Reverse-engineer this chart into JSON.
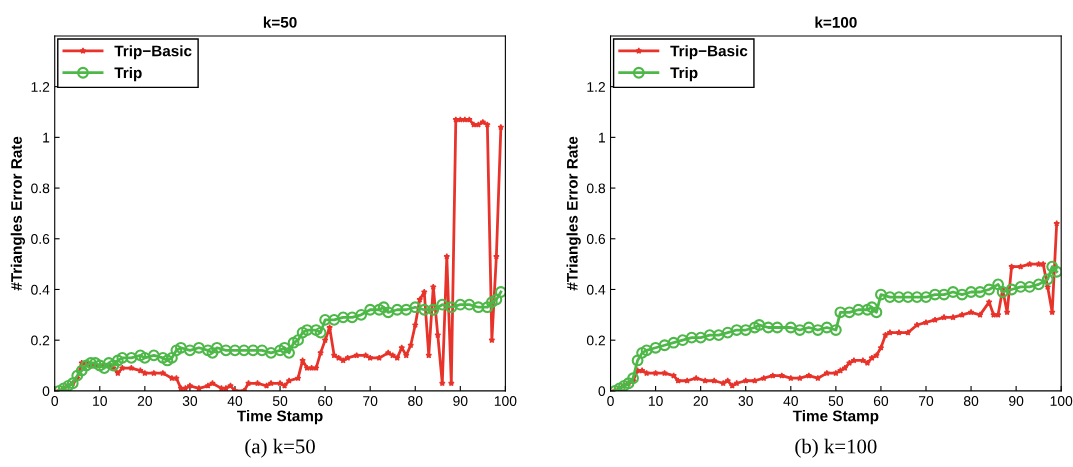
{
  "chart_data": [
    {
      "type": "line",
      "title": "k=50",
      "xlabel": "Time Stamp",
      "ylabel": "#Triangles Error Rate",
      "annotations": [
        "(a) k=50"
      ],
      "xlim": [
        0,
        100
      ],
      "xticks": [
        0,
        10,
        20,
        30,
        40,
        50,
        60,
        70,
        80,
        90,
        100
      ],
      "ylim": [
        0,
        1.4
      ],
      "yticks": [
        0,
        0.2,
        0.4,
        0.6,
        0.8,
        1,
        1.2
      ],
      "grid": false,
      "legend": "top left",
      "line_style": "solid",
      "series": [
        {
          "name": "Trip−Basic",
          "color": "#e8332a",
          "marker": "star",
          "x": [
            1,
            2,
            3,
            4,
            5,
            6,
            7,
            8,
            10,
            12,
            13,
            14,
            15,
            17,
            19,
            20,
            22,
            24,
            26,
            27,
            28,
            29,
            30,
            32,
            34,
            35,
            37,
            38,
            39,
            40,
            42,
            43,
            45,
            47,
            48,
            50,
            51,
            52,
            54,
            55,
            56,
            57,
            58,
            59,
            60,
            61,
            62,
            63,
            64,
            65,
            67,
            69,
            70,
            72,
            74,
            75,
            76,
            77,
            78,
            79,
            80,
            81,
            82,
            83,
            84,
            85,
            86,
            87,
            88,
            89,
            90,
            91,
            92,
            93,
            94,
            95,
            96,
            97,
            98,
            99
          ],
          "values": [
            0,
            0.01,
            0.02,
            0.03,
            0.05,
            0.11,
            0.11,
            0.1,
            0.1,
            0.1,
            0.09,
            0.07,
            0.09,
            0.09,
            0.08,
            0.07,
            0.07,
            0.07,
            0.05,
            0.05,
            0.01,
            0.01,
            0.02,
            0.01,
            0.02,
            0.03,
            0.01,
            0.01,
            0.02,
            0,
            0,
            0.03,
            0.03,
            0.02,
            0.03,
            0.03,
            0.02,
            0.04,
            0.05,
            0.12,
            0.09,
            0.09,
            0.09,
            0.15,
            0.2,
            0.25,
            0.14,
            0.13,
            0.12,
            0.13,
            0.14,
            0.14,
            0.13,
            0.13,
            0.15,
            0.14,
            0.13,
            0.17,
            0.14,
            0.18,
            0.26,
            0.36,
            0.39,
            0.14,
            0.41,
            0.22,
            0.03,
            0.53,
            0.03,
            1.07,
            1.07,
            1.07,
            1.07,
            1.05,
            1.05,
            1.06,
            1.05,
            0.2,
            0.53,
            1.04
          ]
        },
        {
          "name": "Trip",
          "color": "#4db848",
          "marker": "circle",
          "x": [
            1,
            2,
            3,
            4,
            5,
            6,
            7,
            8,
            9,
            10,
            11,
            12,
            13,
            14,
            15,
            17,
            19,
            20,
            22,
            24,
            25,
            26,
            27,
            28,
            30,
            32,
            34,
            35,
            36,
            38,
            40,
            42,
            44,
            46,
            48,
            50,
            51,
            52,
            53,
            54,
            55,
            56,
            58,
            59,
            60,
            62,
            64,
            66,
            68,
            70,
            72,
            73,
            74,
            76,
            78,
            80,
            82,
            84,
            86,
            88,
            90,
            92,
            94,
            96,
            97,
            98,
            99
          ],
          "values": [
            0,
            0.01,
            0.02,
            0.03,
            0.06,
            0.08,
            0.1,
            0.11,
            0.11,
            0.1,
            0.09,
            0.11,
            0.1,
            0.12,
            0.13,
            0.13,
            0.14,
            0.13,
            0.14,
            0.13,
            0.12,
            0.13,
            0.16,
            0.17,
            0.16,
            0.17,
            0.16,
            0.15,
            0.17,
            0.16,
            0.16,
            0.16,
            0.16,
            0.16,
            0.15,
            0.16,
            0.17,
            0.15,
            0.19,
            0.2,
            0.23,
            0.24,
            0.24,
            0.23,
            0.28,
            0.28,
            0.29,
            0.29,
            0.3,
            0.32,
            0.32,
            0.33,
            0.31,
            0.32,
            0.32,
            0.33,
            0.32,
            0.32,
            0.34,
            0.33,
            0.34,
            0.34,
            0.33,
            0.33,
            0.35,
            0.36,
            0.39
          ]
        }
      ]
    },
    {
      "type": "line",
      "title": "k=100",
      "xlabel": "Time Stamp",
      "ylabel": "#Triangles Error Rate",
      "annotations": [
        "(b) k=100"
      ],
      "xlim": [
        0,
        100
      ],
      "xticks": [
        0,
        10,
        20,
        30,
        40,
        50,
        60,
        70,
        80,
        90,
        100
      ],
      "ylim": [
        0,
        1.4
      ],
      "yticks": [
        0,
        0.2,
        0.4,
        0.6,
        0.8,
        1,
        1.2
      ],
      "grid": false,
      "legend": "top left",
      "line_style": "solid",
      "series": [
        {
          "name": "Trip−Basic",
          "color": "#e8332a",
          "marker": "star",
          "x": [
            1,
            2,
            3,
            4,
            5,
            6,
            7,
            8,
            10,
            12,
            14,
            15,
            17,
            19,
            21,
            23,
            25,
            26,
            27,
            28,
            30,
            32,
            34,
            36,
            38,
            40,
            42,
            44,
            46,
            48,
            50,
            51,
            52,
            53,
            54,
            56,
            57,
            58,
            59,
            60,
            61,
            62,
            64,
            66,
            68,
            70,
            72,
            74,
            76,
            78,
            80,
            82,
            84,
            85,
            86,
            87,
            88,
            89,
            91,
            93,
            95,
            96,
            97,
            98,
            99
          ],
          "values": [
            0,
            0.01,
            0.02,
            0.03,
            0.04,
            0.08,
            0.08,
            0.07,
            0.07,
            0.07,
            0.06,
            0.04,
            0.04,
            0.05,
            0.04,
            0.04,
            0.03,
            0.04,
            0.02,
            0.03,
            0.04,
            0.04,
            0.05,
            0.06,
            0.06,
            0.05,
            0.05,
            0.06,
            0.05,
            0.07,
            0.07,
            0.08,
            0.09,
            0.11,
            0.12,
            0.12,
            0.11,
            0.13,
            0.14,
            0.17,
            0.22,
            0.23,
            0.23,
            0.23,
            0.26,
            0.27,
            0.28,
            0.29,
            0.29,
            0.3,
            0.31,
            0.3,
            0.35,
            0.3,
            0.3,
            0.4,
            0.31,
            0.49,
            0.49,
            0.5,
            0.5,
            0.5,
            0.41,
            0.31,
            0.66
          ]
        },
        {
          "name": "Trip",
          "color": "#4db848",
          "marker": "circle",
          "x": [
            1,
            2,
            3,
            4,
            5,
            6,
            7,
            8,
            10,
            12,
            14,
            16,
            18,
            20,
            22,
            24,
            26,
            28,
            30,
            32,
            33,
            35,
            37,
            40,
            42,
            44,
            46,
            48,
            50,
            51,
            53,
            55,
            57,
            58,
            59,
            60,
            62,
            64,
            66,
            68,
            70,
            72,
            74,
            76,
            78,
            80,
            82,
            84,
            86,
            87,
            89,
            91,
            93,
            95,
            97,
            98,
            99
          ],
          "values": [
            0,
            0.01,
            0.02,
            0.03,
            0.05,
            0.12,
            0.15,
            0.16,
            0.17,
            0.18,
            0.19,
            0.2,
            0.21,
            0.21,
            0.22,
            0.22,
            0.23,
            0.24,
            0.24,
            0.25,
            0.26,
            0.25,
            0.25,
            0.25,
            0.24,
            0.25,
            0.24,
            0.25,
            0.24,
            0.31,
            0.31,
            0.32,
            0.32,
            0.33,
            0.31,
            0.38,
            0.37,
            0.37,
            0.37,
            0.37,
            0.37,
            0.38,
            0.38,
            0.39,
            0.38,
            0.39,
            0.39,
            0.4,
            0.42,
            0.39,
            0.4,
            0.41,
            0.41,
            0.42,
            0.44,
            0.49,
            0.47
          ]
        }
      ]
    }
  ]
}
